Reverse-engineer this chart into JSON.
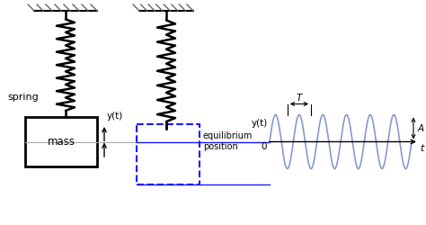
{
  "bg_color": "#ffffff",
  "hatch_color": "#555555",
  "spring_color": "#000000",
  "mass_color": "#000000",
  "dashed_box_color": "#1a1aff",
  "sine_color": "#8899cc",
  "axis_color": "#000000",
  "text_color": "#000000",
  "spring_label": "spring",
  "mass_label": "mass",
  "yt_label": "y(t)",
  "equil_label": "equilibrium",
  "pos_label": "position",
  "T_label": "T",
  "A_label": "A",
  "t_label": "t",
  "zero_label": "0",
  "figw": 4.74,
  "figh": 2.5,
  "dpi": 100
}
